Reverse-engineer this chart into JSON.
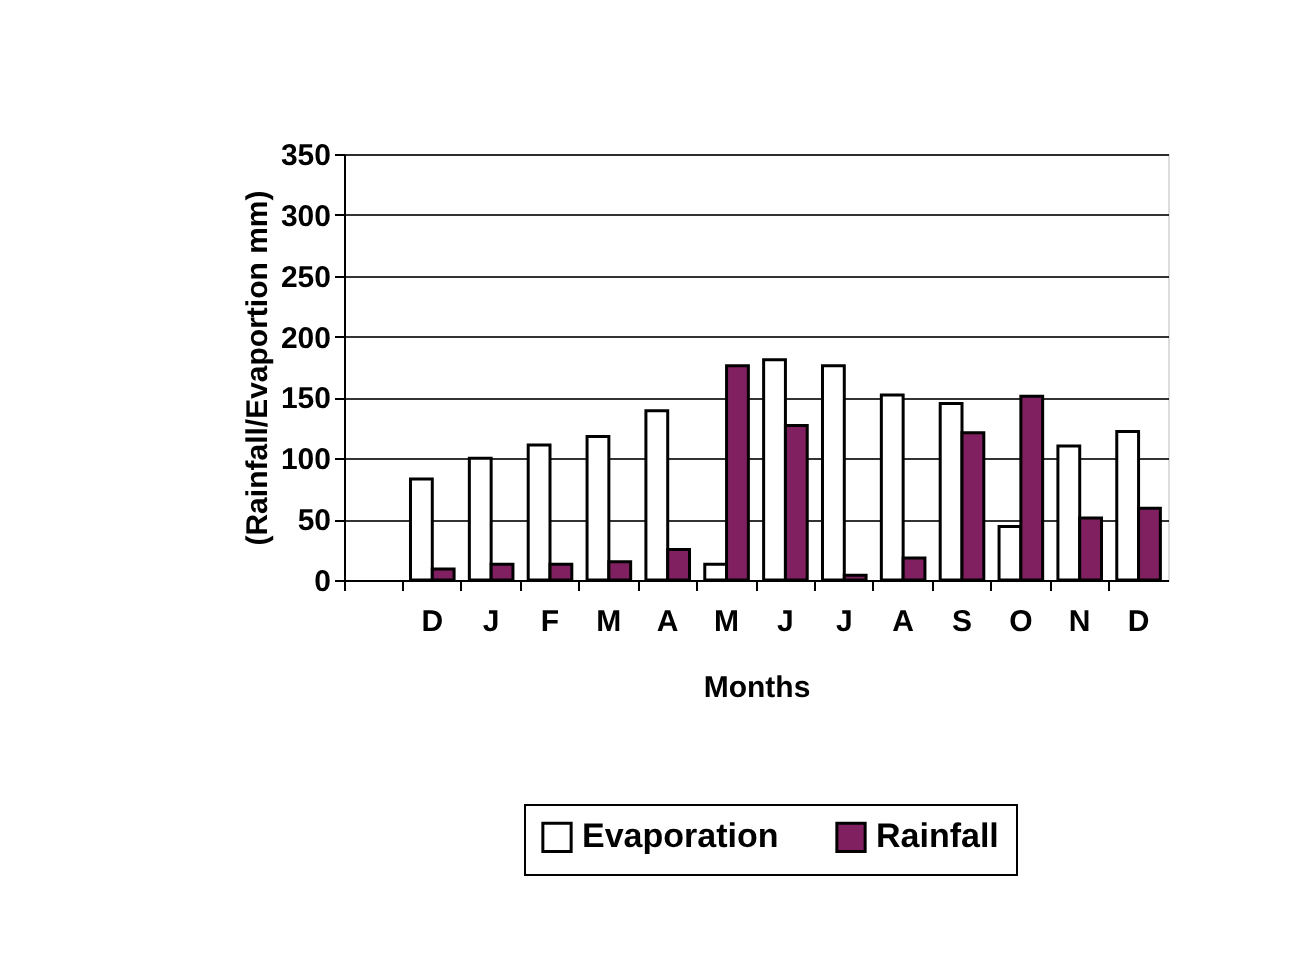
{
  "chart_data": {
    "type": "bar",
    "xlabel": "Months",
    "ylabel": "(Rainfall/Evaportion mm)",
    "categories": [
      null,
      "D",
      "J",
      "F",
      "M",
      "A",
      "M",
      "J",
      "J",
      "A",
      "S",
      "O",
      "N",
      "D"
    ],
    "series": [
      {
        "name": "Evaporation",
        "color": "#ffffff",
        "values": [
          null,
          83,
          100,
          111,
          118,
          139,
          13,
          181,
          176,
          152,
          145,
          44,
          110,
          122
        ]
      },
      {
        "name": "Rainfall",
        "color": "#802060",
        "values": [
          null,
          9,
          13,
          13,
          15,
          25,
          176,
          127,
          4,
          18,
          121,
          151,
          51,
          59
        ]
      }
    ],
    "ylim": [
      0,
      350
    ],
    "yticks": [
      0,
      50,
      100,
      150,
      200,
      250,
      300,
      350
    ],
    "grid": "y",
    "legend": "bottom right"
  }
}
